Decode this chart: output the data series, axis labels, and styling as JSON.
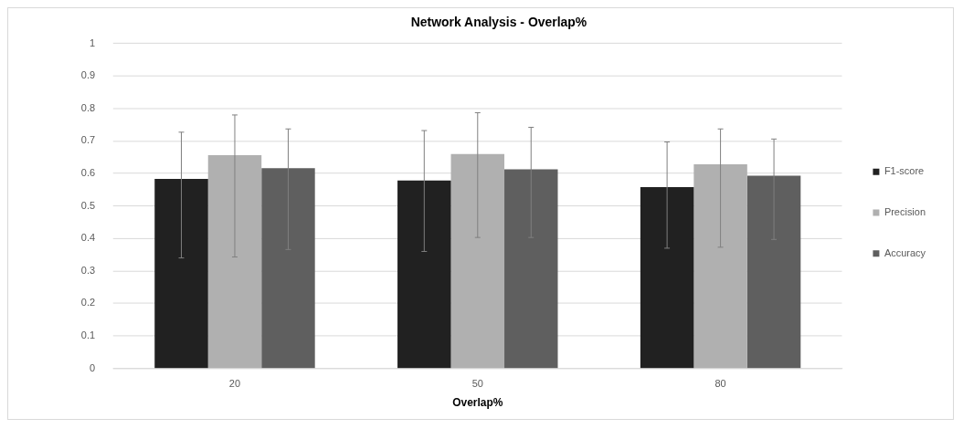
{
  "chart_data": {
    "type": "bar",
    "title": "Network Analysis - Overlap%",
    "xlabel": "Overlap%",
    "categories": [
      "20",
      "50",
      "80"
    ],
    "series": [
      {
        "name": "F1-score",
        "color": "#212121",
        "values": [
          0.583,
          0.578,
          0.558
        ],
        "errors": [
          [
            0.34,
            0.727
          ],
          [
            0.36,
            0.732
          ],
          [
            0.37,
            0.697
          ]
        ]
      },
      {
        "name": "Precision",
        "color": "#b0b0b0",
        "values": [
          0.656,
          0.66,
          0.628
        ],
        "errors": [
          [
            0.343,
            0.78
          ],
          [
            0.403,
            0.787
          ],
          [
            0.373,
            0.737
          ]
        ]
      },
      {
        "name": "Accuracy",
        "color": "#5f5f5f",
        "values": [
          0.616,
          0.613,
          0.593
        ],
        "errors": [
          [
            0.366,
            0.737
          ],
          [
            0.403,
            0.742
          ],
          [
            0.397,
            0.706
          ]
        ]
      }
    ],
    "ylim": [
      0,
      1
    ],
    "yticks": [
      0,
      0.1,
      0.2,
      0.3,
      0.4,
      0.5,
      0.6,
      0.7,
      0.8,
      0.9,
      1
    ],
    "grid": "y",
    "legend": "right"
  }
}
